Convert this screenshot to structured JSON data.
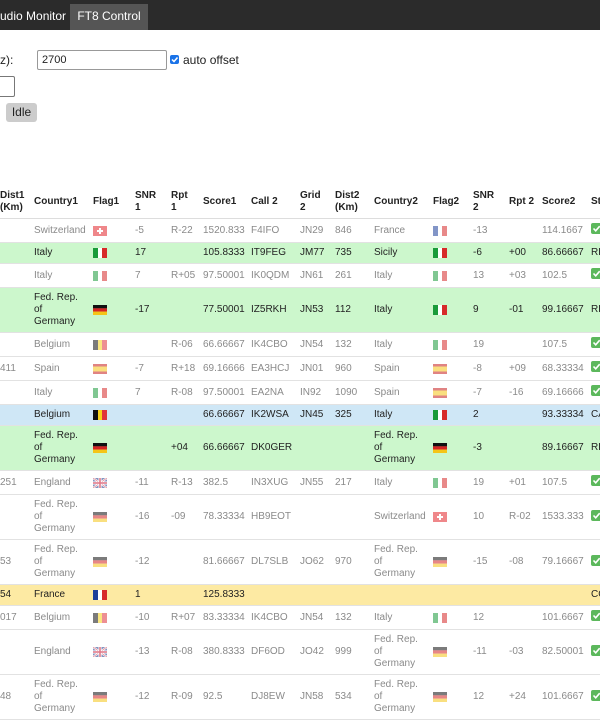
{
  "tabs": [
    "udio Monitor",
    "FT8 Control"
  ],
  "form": {
    "freq_label": "z):",
    "freq_value": "2700",
    "auto_offset": "auto offset",
    "button": "Idle"
  },
  "table": {
    "headers": [
      "Dist1 (Km)",
      "Country1",
      "Flag1",
      "SNR 1",
      "Rpt 1",
      "Score1",
      "Call 2",
      "Grid 2",
      "Dist2 (Km)",
      "Country2",
      "Flag2",
      "SNR 2",
      "Rpt 2",
      "Score2",
      "St"
    ],
    "rows": [
      [
        null,
        "Switzerland",
        null,
        "-5",
        "R-22",
        "1520.833",
        "F4IFO",
        "JN29",
        "846",
        "France",
        null,
        "-13",
        null,
        "114.1667",
        null
      ],
      [
        null,
        "Italy",
        null,
        "17",
        null,
        "105.8333",
        "IT9FEG",
        "JM77",
        "735",
        "Sicily",
        null,
        "-6",
        "+00",
        "86.66667",
        "RE"
      ],
      [
        null,
        "Italy",
        null,
        "7",
        "R+05",
        "97.50001",
        "IK0QDM",
        "JN61",
        "261",
        "Italy",
        null,
        "13",
        "+03",
        "102.5",
        null
      ],
      [
        null,
        "Fed. Rep. of Germany",
        null,
        "-17",
        null,
        "77.50001",
        "IZ5RKH",
        "JN53",
        "112",
        "Italy",
        null,
        "9",
        "-01",
        "99.16667",
        "RE"
      ],
      [
        null,
        "Belgium",
        null,
        null,
        "R-06",
        "66.66667",
        "IK4CBO",
        "JN54",
        "132",
        "Italy",
        null,
        "19",
        null,
        "107.5",
        null
      ],
      [
        "411",
        "Spain",
        null,
        "-7",
        "R+18",
        "69.16666",
        "EA3HCJ",
        "JN01",
        "960",
        "Spain",
        null,
        "-8",
        "+09",
        "68.33334",
        null
      ],
      [
        null,
        "Italy",
        null,
        "7",
        "R-08",
        "97.50001",
        "EA2NA",
        "IN92",
        "1090",
        "Spain",
        null,
        "-7",
        "-16",
        "69.16666",
        null
      ],
      [
        null,
        "Belgium",
        null,
        null,
        null,
        "66.66667",
        "IK2WSA",
        "JN45",
        "325",
        "Italy",
        null,
        "2",
        null,
        "93.33334",
        "CA"
      ],
      [
        null,
        "Fed. Rep. of Germany",
        null,
        null,
        "+04",
        "66.66667",
        "DK0GER",
        null,
        null,
        "Fed. Rep. of Germany",
        null,
        "-3",
        null,
        "89.16667",
        "RE"
      ],
      [
        "251",
        "England",
        null,
        "-11",
        "R-13",
        "382.5",
        "IN3XUG",
        "JN55",
        "217",
        "Italy",
        null,
        "19",
        "+01",
        "107.5",
        null
      ],
      [
        null,
        "Fed. Rep. of Germany",
        null,
        "-16",
        "-09",
        "78.33334",
        "HB9EOT",
        null,
        null,
        "Switzerland",
        null,
        "10",
        "R-02",
        "1533.333",
        null
      ],
      [
        "53",
        "Fed. Rep. of Germany",
        null,
        "-12",
        null,
        "81.66667",
        "DL7SLB",
        "JO62",
        "970",
        "Fed. Rep. of Germany",
        null,
        "-15",
        "-08",
        "79.16667",
        null
      ],
      [
        "54",
        "France",
        null,
        "1",
        null,
        "125.8333",
        null,
        null,
        null,
        null,
        null,
        null,
        null,
        null,
        "CO"
      ],
      [
        "017",
        "Belgium",
        null,
        "-10",
        "R+07",
        "83.33334",
        "IK4CBO",
        "JN54",
        "132",
        "Italy",
        null,
        "12",
        null,
        "101.6667",
        null
      ],
      [
        null,
        "England",
        null,
        "-13",
        "R-08",
        "380.8333",
        "DF6OD",
        "JO42",
        "999",
        "Fed. Rep. of Germany",
        null,
        "-11",
        "-03",
        "82.50001",
        null
      ],
      [
        "48",
        "Fed. Rep. of Germany",
        null,
        "-12",
        "R-09",
        "92.5",
        "DJ8EW",
        "JN58",
        "534",
        "Fed. Rep. of Germany",
        null,
        "12",
        "+24",
        "101.6667",
        null
      ]
    ]
  }
}
